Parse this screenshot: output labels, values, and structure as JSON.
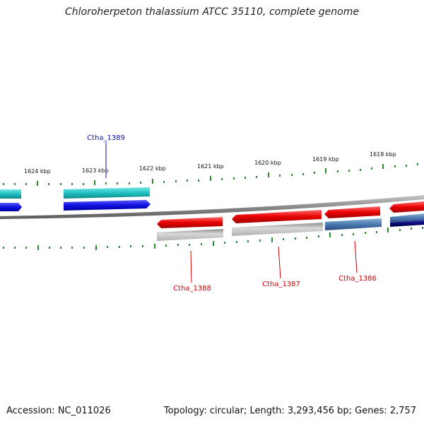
{
  "title": "Chloroherpeton thalassium ATCC 35110, complete genome",
  "footer": {
    "accession": "Accession: NC_011026",
    "summary": "Topology: circular; Length: 3,293,456 bp; Genes: 2,757"
  },
  "ruler_labels": [
    "1624 kbp",
    "1623 kbp",
    "1622 kbp",
    "1621 kbp",
    "1620 kbp",
    "1619 kbp",
    "1618 kbp"
  ],
  "genes": [
    {
      "label": "Ctha_1389",
      "color": "#1010b0"
    },
    {
      "label": "Ctha_1388",
      "color": "#cc0000"
    },
    {
      "label": "Ctha_1387",
      "color": "#cc0000"
    },
    {
      "label": "Ctha_1386",
      "color": "#cc0000"
    }
  ],
  "colors": {
    "backbone": "#8a8a8a",
    "tick": "#2a8a2a",
    "cyan": "#20c0c0",
    "blue": "#1010e0",
    "red": "#e80000",
    "gray": "#a8a8a8",
    "steelblue": "#4a7ab0",
    "navy": "#0a0a7a"
  }
}
